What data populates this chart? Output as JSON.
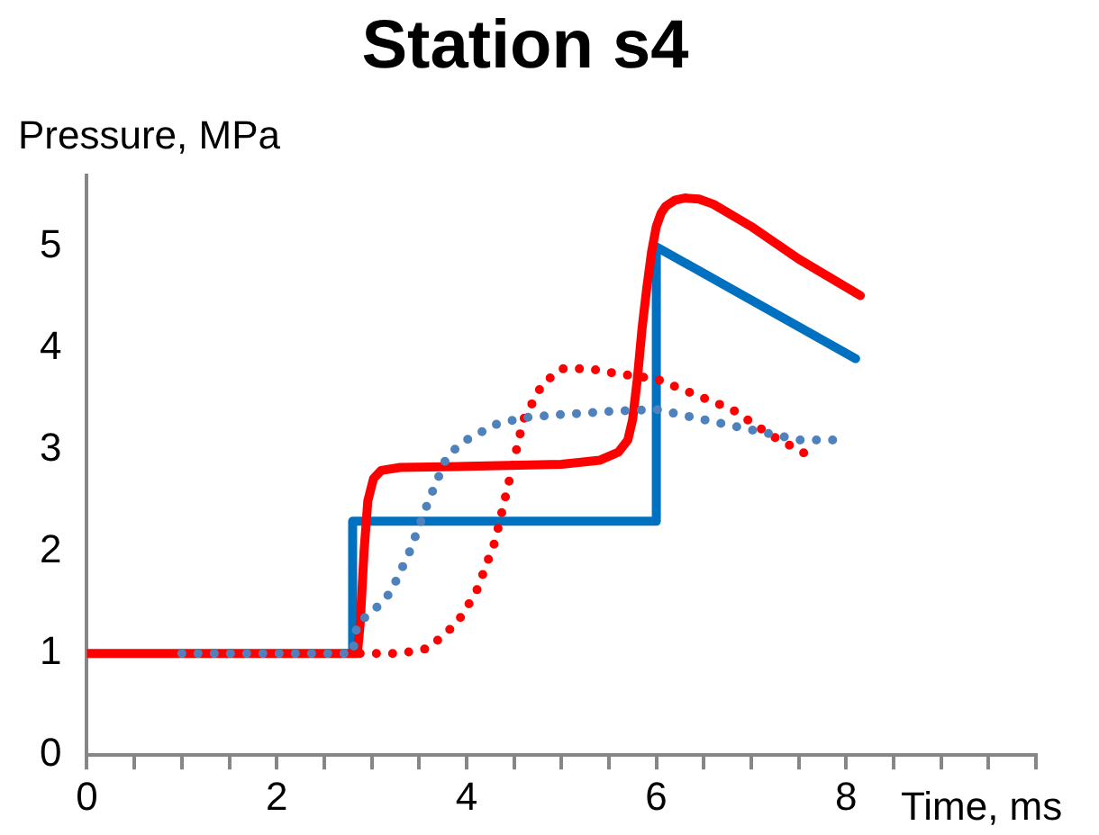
{
  "chart_data": {
    "type": "line",
    "title": "Station s4",
    "xlabel": "Time, ms",
    "ylabel": "Pressure, MPa",
    "xlim": [
      0,
      10
    ],
    "ylim": [
      0,
      5.7
    ],
    "xticks": [
      0,
      {
        "value": 0.5,
        "label": null
      },
      {
        "value": 1,
        "label": null
      },
      {
        "value": 1.5,
        "label": null
      },
      2,
      {
        "value": 2.5,
        "label": null
      },
      {
        "value": 3,
        "label": null
      },
      {
        "value": 3.5,
        "label": null
      },
      4,
      {
        "value": 4.5,
        "label": null
      },
      {
        "value": 5,
        "label": null
      },
      {
        "value": 5.5,
        "label": null
      },
      6,
      {
        "value": 6.5,
        "label": null
      },
      {
        "value": 7,
        "label": null
      },
      {
        "value": 7.5,
        "label": null
      },
      8,
      {
        "value": 8.5,
        "label": null
      },
      {
        "value": 9,
        "label": null
      },
      {
        "value": 9.5,
        "label": null
      },
      {
        "value": 10,
        "label": null
      }
    ],
    "yticks": [
      0,
      1,
      2,
      3,
      4,
      5
    ],
    "grid": false,
    "legend": false,
    "marker": "none",
    "series": [
      {
        "color": "#0070c0",
        "line_style": "solid",
        "x": [
          2.8,
          2.8,
          6,
          6,
          8.1
        ],
        "values": [
          1,
          2.3,
          2.3,
          5,
          3.9
        ]
      },
      {
        "color": "#ff0000",
        "line_style": "solid",
        "x": [
          0,
          2.85,
          2.88,
          2.92,
          2.96,
          3.02,
          3.1,
          3.3,
          4,
          5,
          5.4,
          5.6,
          5.7,
          5.75,
          5.8,
          5.85,
          5.9,
          5.95,
          6,
          6.05,
          6.1,
          6.2,
          6.3,
          6.45,
          6.6,
          7,
          7.5,
          8.15
        ],
        "values": [
          1,
          1,
          1.3,
          2.0,
          2.5,
          2.72,
          2.8,
          2.83,
          2.84,
          2.86,
          2.9,
          2.98,
          3.1,
          3.3,
          3.7,
          4.2,
          4.6,
          4.95,
          5.2,
          5.33,
          5.4,
          5.46,
          5.48,
          5.47,
          5.42,
          5.2,
          4.88,
          4.52
        ]
      },
      {
        "color": "#4f81bd",
        "line_style": "dotted",
        "x": [
          1,
          2.8,
          2.85,
          3,
          3.2,
          3.4,
          3.6,
          3.8,
          4,
          4.3,
          4.6,
          5,
          5.5,
          6,
          6.5,
          7,
          7.5,
          8
        ],
        "values": [
          1,
          1,
          1.3,
          1.4,
          1.6,
          2,
          2.5,
          2.95,
          3.1,
          3.25,
          3.32,
          3.35,
          3.38,
          3.4,
          3.3,
          3.2,
          3.1,
          3.1
        ]
      },
      {
        "color": "#ff0000",
        "line_style": "dotted",
        "x": [
          1,
          2.8,
          3.3,
          3.6,
          3.9,
          4.1,
          4.3,
          4.4,
          4.5,
          4.6,
          4.8,
          5,
          5.3,
          5.6,
          6,
          6.4,
          6.8,
          7.2,
          7.6
        ],
        "values": [
          1,
          1,
          1,
          1.05,
          1.3,
          1.6,
          2.1,
          2.5,
          2.9,
          3.3,
          3.65,
          3.8,
          3.8,
          3.75,
          3.7,
          3.55,
          3.4,
          3.15,
          2.95
        ]
      }
    ]
  }
}
